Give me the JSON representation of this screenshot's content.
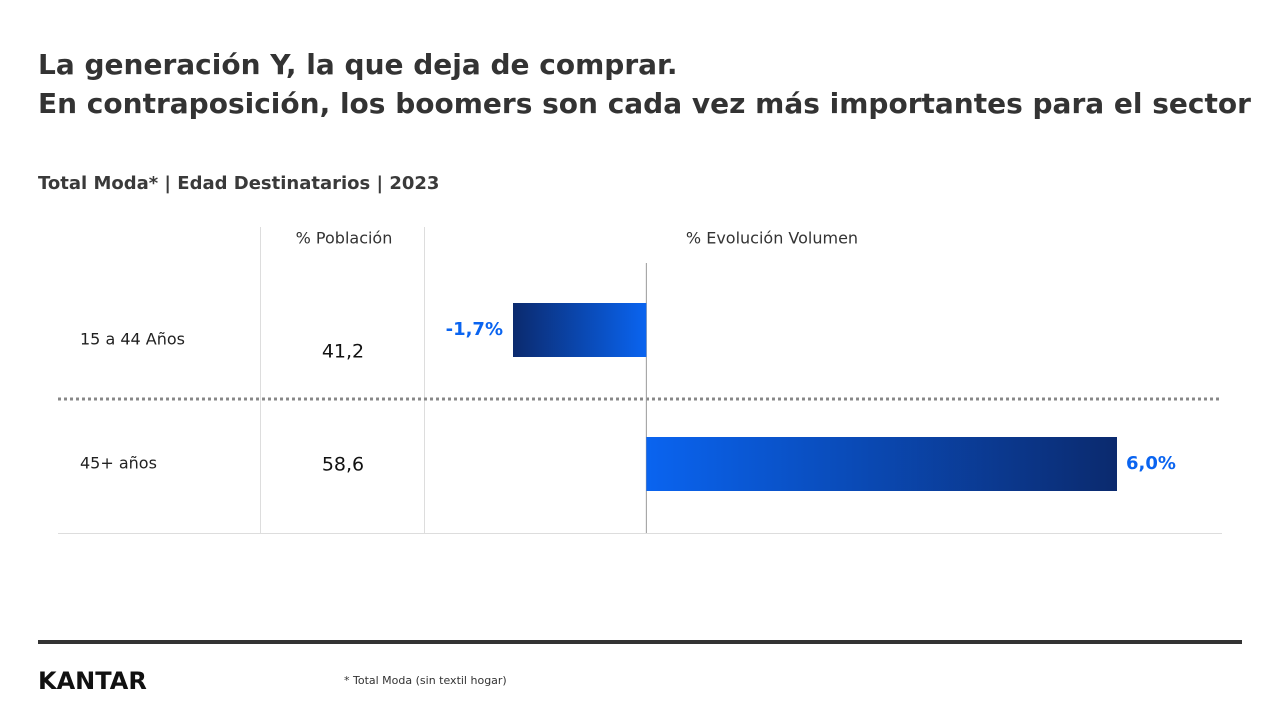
{
  "chart_data": {
    "type": "bar",
    "title": [
      "La generación Y, la que deja de comprar.",
      "En contraposición, los boomers son cada vez más importantes para el sector"
    ],
    "subtitle": "Total Moda* | Edad Destinatarios | 2023",
    "columns": [
      "% Población",
      "% Evolución Volumen"
    ],
    "categories": [
      "15 a 44 Años",
      "45+ años"
    ],
    "population": {
      "values": [
        41.2,
        58.6
      ],
      "value_labels": [
        "41,2",
        "58,6"
      ]
    },
    "series": [
      {
        "values": [
          -1.7,
          6.0
        ],
        "value_labels": [
          "-1,7%",
          "6,0%"
        ],
        "color": "#0a64f0"
      }
    ]
  },
  "footer": {
    "logo": "KANTAR",
    "footnote": "* Total Moda (sin textil hogar)"
  }
}
